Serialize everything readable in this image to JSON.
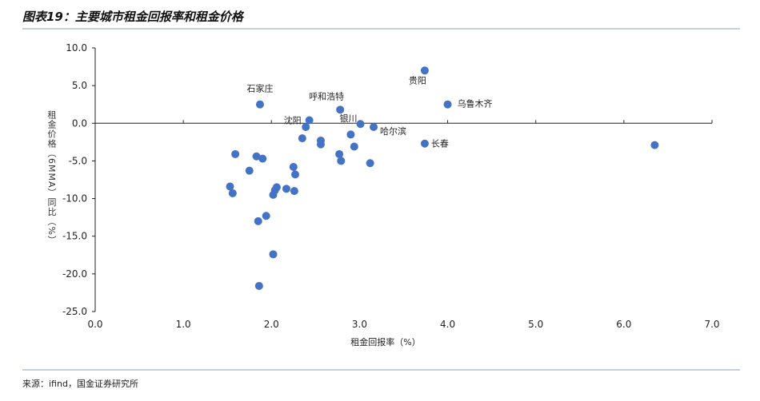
{
  "chart_data": {
    "type": "scatter",
    "title": "图表19：主要城市租金回报率和租金价格",
    "xlabel": "租金回报率（%）",
    "ylabel": "租金价格（6MMA）同比（%）",
    "source": "来源：ifind，国金证券研究所",
    "color": "#4472c4",
    "xlim": [
      0,
      7
    ],
    "ylim": [
      -25,
      10
    ],
    "xticks": [
      {
        "value": 0,
        "label": "0.0"
      },
      {
        "value": 1,
        "label": "1.0"
      },
      {
        "value": 2,
        "label": "2.0"
      },
      {
        "value": 3,
        "label": "3.0"
      },
      {
        "value": 4,
        "label": "4.0"
      },
      {
        "value": 5,
        "label": "5.0"
      },
      {
        "value": 6,
        "label": "6.0"
      },
      {
        "value": 7,
        "label": "7.0"
      }
    ],
    "yticks": [
      {
        "value": 10,
        "label": "10.0"
      },
      {
        "value": 5,
        "label": "5.0"
      },
      {
        "value": 0,
        "label": "0.0"
      },
      {
        "value": -5,
        "label": "-5.0"
      },
      {
        "value": -10,
        "label": "-10.0"
      },
      {
        "value": -15,
        "label": "-15.0"
      },
      {
        "value": -20,
        "label": "-20.0"
      },
      {
        "value": -25,
        "label": "-25.0"
      }
    ],
    "x": [
      3.74,
      4.0,
      1.87,
      2.78,
      2.43,
      2.39,
      3.01,
      3.16,
      2.9,
      3.74,
      6.35,
      2.35,
      2.56,
      2.56,
      2.94,
      2.77,
      2.79,
      3.12,
      1.59,
      1.83,
      1.9,
      1.75,
      2.25,
      2.27,
      1.53,
      1.56,
      2.06,
      2.04,
      2.02,
      2.17,
      2.26,
      1.94,
      1.85,
      2.02,
      1.86
    ],
    "y": [
      7.0,
      2.5,
      2.5,
      1.8,
      0.4,
      -0.5,
      -0.1,
      -0.5,
      -1.5,
      -2.7,
      -2.9,
      -2.0,
      -2.3,
      -2.8,
      -3.1,
      -4.1,
      -5.0,
      -5.3,
      -4.1,
      -4.4,
      -4.7,
      -6.3,
      -5.8,
      -6.8,
      -8.4,
      -9.3,
      -8.5,
      -8.9,
      -9.5,
      -8.7,
      -9.0,
      -12.3,
      -13.0,
      -17.4,
      -21.6
    ],
    "labels": [
      "贵阳",
      "乌鲁木齐",
      "石家庄",
      "呼和浩特",
      "沈阳",
      null,
      "银川",
      "哈尔滨",
      null,
      "长春",
      null,
      null,
      null,
      null,
      null,
      null,
      null,
      null,
      null,
      null,
      null,
      null,
      null,
      null,
      null,
      null,
      null,
      null,
      null,
      null,
      null,
      null,
      null,
      null,
      null
    ]
  }
}
